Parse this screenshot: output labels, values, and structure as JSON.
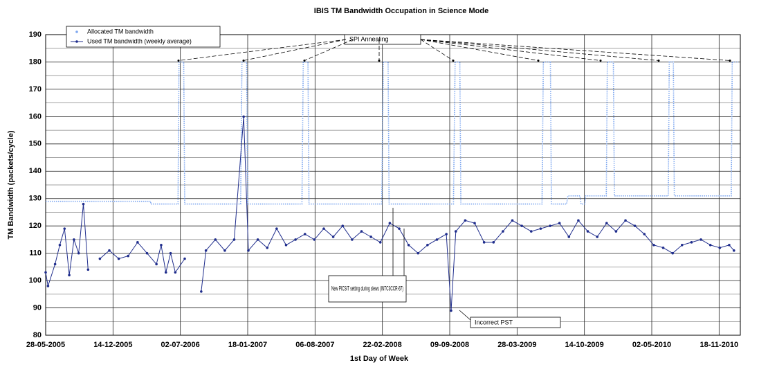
{
  "chart_data": {
    "type": "line",
    "title": "IBIS TM Bandwidth Occupation in Science Mode",
    "x_label": "1st Day of Week",
    "y_label": "TM Bandwidth (packets/cycle)",
    "xlim": [
      "2005-05-28",
      "2011-01-20"
    ],
    "xticks": [
      {
        "value": "2005-05-28",
        "label": "28-05-2005"
      },
      {
        "value": "2005-12-14",
        "label": "14-12-2005"
      },
      {
        "value": "2006-07-02",
        "label": "02-07-2006"
      },
      {
        "value": "2007-01-18",
        "label": "18-01-2007"
      },
      {
        "value": "2007-08-06",
        "label": "06-08-2007"
      },
      {
        "value": "2008-02-22",
        "label": "22-02-2008"
      },
      {
        "value": "2008-09-09",
        "label": "09-09-2008"
      },
      {
        "value": "2009-03-28",
        "label": "28-03-2009"
      },
      {
        "value": "2009-10-14",
        "label": "14-10-2009"
      },
      {
        "value": "2010-05-02",
        "label": "02-05-2010"
      },
      {
        "value": "2010-11-18",
        "label": "18-11-2010"
      }
    ],
    "ylim": [
      80,
      190
    ],
    "yticks": [
      80,
      90,
      100,
      110,
      120,
      130,
      140,
      150,
      160,
      170,
      180,
      190
    ],
    "grid": true,
    "legend": "top-left",
    "annotations": [
      "SPI Annealing",
      "New PICSIT setting during slews (INTC3CCR-87)",
      "Incorrect PST"
    ],
    "series": [
      {
        "name": "Allocated TM bandwidth",
        "color": "#7fa8f0",
        "x": [
          "2005-05-28",
          "2006-04-05",
          "2006-04-05",
          "2006-06-25",
          "2006-06-28",
          "2006-07-12",
          "2006-07-15",
          "2006-12-28",
          "2007-01-01",
          "2007-01-15",
          "2007-01-18",
          "2007-06-28",
          "2007-07-02",
          "2007-07-16",
          "2007-07-19",
          "2008-02-20",
          "2008-02-25",
          "2008-03-10",
          "2008-03-13",
          "2008-09-20",
          "2008-09-25",
          "2008-10-09",
          "2008-10-12",
          "2009-06-10",
          "2009-06-14",
          "2009-07-05",
          "2009-07-08",
          "2009-08-22",
          "2009-08-26",
          "2009-10-01",
          "2009-10-04",
          "2009-10-15",
          "2009-10-18",
          "2009-12-18",
          "2009-12-21",
          "2010-01-08",
          "2010-01-11",
          "2010-06-20",
          "2010-06-23",
          "2010-07-05",
          "2010-07-08",
          "2010-12-24",
          "2010-12-27",
          "2011-01-15"
        ],
        "values": [
          129,
          129,
          128,
          128,
          180,
          180,
          128,
          128,
          180,
          180,
          128,
          128,
          180,
          180,
          128,
          128,
          180,
          180,
          128,
          128,
          180,
          180,
          128,
          128,
          180,
          180,
          128,
          128,
          131,
          131,
          128,
          128,
          131,
          131,
          180,
          180,
          131,
          131,
          180,
          180,
          131,
          131,
          180,
          180
        ]
      },
      {
        "name": "Used TM bandwidth (weekly average)",
        "color": "#1f2d8c",
        "x": [
          "2005-05-28",
          "2005-06-04",
          "2005-06-25",
          "2005-07-09",
          "2005-07-23",
          "2005-08-06",
          "2005-08-20",
          "2005-09-03",
          "2005-09-17",
          "2005-10-01",
          "2005-10-15",
          "2005-11-05",
          "2005-12-03",
          "2005-12-31",
          "2006-01-28",
          "2006-02-25",
          "2006-03-25",
          "2006-04-22",
          "2006-05-06",
          "2006-05-20",
          "2006-06-03",
          "2006-06-17",
          "2006-07-15",
          "2006-08-12",
          "2006-09-02",
          "2006-09-16",
          "2006-10-14",
          "2006-11-11",
          "2006-12-09",
          "2007-01-06",
          "2007-01-20",
          "2007-02-17",
          "2007-03-17",
          "2007-04-14",
          "2007-05-12",
          "2007-06-09",
          "2007-07-07",
          "2007-08-04",
          "2007-09-01",
          "2007-09-29",
          "2007-10-27",
          "2007-11-24",
          "2007-12-22",
          "2008-01-19",
          "2008-02-16",
          "2008-03-15",
          "2008-04-12",
          "2008-05-10",
          "2008-06-07",
          "2008-07-05",
          "2008-08-02",
          "2008-08-30",
          "2008-09-13",
          "2008-09-27",
          "2008-10-25",
          "2008-11-22",
          "2008-12-20",
          "2009-01-17",
          "2009-02-14",
          "2009-03-14",
          "2009-04-11",
          "2009-05-09",
          "2009-06-06",
          "2009-07-04",
          "2009-08-01",
          "2009-08-29",
          "2009-09-26",
          "2009-10-24",
          "2009-11-21",
          "2009-12-19",
          "2010-01-16",
          "2010-02-13",
          "2010-03-13",
          "2010-04-10",
          "2010-05-08",
          "2010-06-05",
          "2010-07-03",
          "2010-07-31",
          "2010-08-28",
          "2010-09-25",
          "2010-10-23",
          "2010-11-20",
          "2010-12-18",
          "2011-01-01"
        ],
        "values": [
          103,
          98,
          106,
          113,
          119,
          102,
          115,
          110,
          128,
          104,
          null,
          108,
          111,
          108,
          109,
          114,
          110,
          106,
          113,
          103,
          110,
          103,
          108,
          null,
          96,
          111,
          115,
          111,
          115,
          160,
          111,
          115,
          112,
          119,
          113,
          115,
          117,
          115,
          119,
          116,
          120,
          115,
          118,
          116,
          114,
          121,
          119,
          113,
          110,
          113,
          115,
          117,
          89,
          118,
          122,
          121,
          114,
          114,
          118,
          122,
          120,
          118,
          119,
          120,
          121,
          116,
          122,
          118,
          116,
          121,
          118,
          122,
          120,
          117,
          113,
          112,
          110,
          113,
          114,
          115,
          113,
          112,
          113,
          111
        ]
      }
    ]
  }
}
